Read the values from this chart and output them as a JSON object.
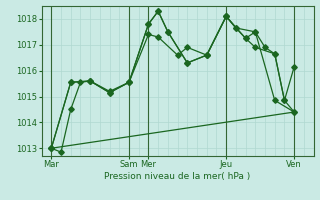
{
  "background_color": "#caeae4",
  "grid_color": "#b0d8d0",
  "line_color": "#1a6620",
  "marker_color": "#1a6620",
  "xlabel": "Pression niveau de la mer( hPa )",
  "ylim": [
    1012.7,
    1018.5
  ],
  "yticks": [
    1013,
    1014,
    1015,
    1016,
    1017,
    1018
  ],
  "xlim": [
    0,
    28
  ],
  "day_tick_positions": [
    1,
    9,
    11,
    19,
    26
  ],
  "day_labels": [
    "Mar",
    "Sam",
    "Mer",
    "Jeu",
    "Ven"
  ],
  "vline_positions": [
    1,
    9,
    11,
    19,
    26
  ],
  "num_x_gridlines": 28,
  "series1": {
    "x": [
      1,
      2,
      3,
      4,
      5,
      7,
      9,
      11,
      12,
      13,
      15,
      17,
      19,
      20,
      21,
      22,
      23,
      24,
      25,
      26
    ],
    "y": [
      1013.0,
      1012.85,
      1014.5,
      1015.55,
      1015.6,
      1015.2,
      1015.55,
      1017.8,
      1018.3,
      1017.5,
      1016.3,
      1016.6,
      1018.1,
      1017.65,
      1017.25,
      1017.5,
      1016.9,
      1016.65,
      1014.85,
      1014.4
    ]
  },
  "series2": {
    "x": [
      1,
      3,
      5,
      7,
      9,
      11,
      12,
      13,
      15,
      17,
      19,
      20,
      22,
      24,
      26
    ],
    "y": [
      1013.0,
      1015.55,
      1015.6,
      1015.15,
      1015.55,
      1017.8,
      1018.3,
      1017.5,
      1016.3,
      1016.6,
      1018.1,
      1017.65,
      1017.5,
      1014.85,
      1014.4
    ]
  },
  "series3": {
    "x": [
      1,
      3,
      5,
      7,
      9,
      11,
      12,
      14,
      15,
      17,
      19,
      21,
      22,
      24,
      25,
      26
    ],
    "y": [
      1013.0,
      1015.55,
      1015.6,
      1015.15,
      1015.55,
      1017.4,
      1017.3,
      1016.6,
      1016.9,
      1016.6,
      1018.1,
      1017.25,
      1016.9,
      1016.65,
      1014.85,
      1016.15
    ]
  },
  "series4": {
    "x": [
      1,
      26
    ],
    "y": [
      1013.0,
      1014.4
    ]
  }
}
